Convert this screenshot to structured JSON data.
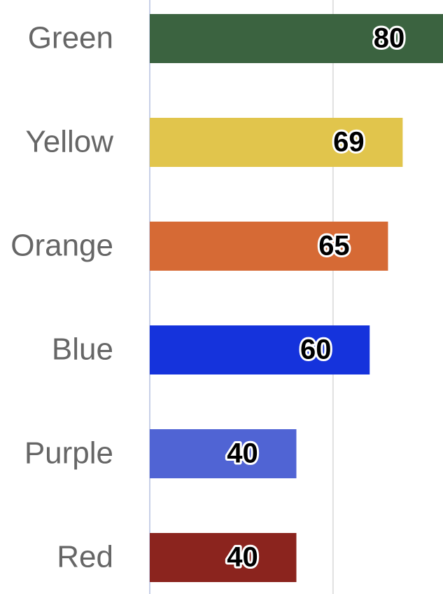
{
  "chart_data": {
    "type": "bar",
    "orientation": "horizontal",
    "categories": [
      "Green",
      "Yellow",
      "Orange",
      "Blue",
      "Purple",
      "Red"
    ],
    "values": [
      80,
      69,
      65,
      60,
      40,
      40
    ],
    "colors": [
      "#3b6340",
      "#e1c54c",
      "#d66a35",
      "#1533dc",
      "#5064d4",
      "#8b241e"
    ],
    "xlim": [
      0,
      80
    ],
    "xticks": [
      50
    ],
    "grid": true
  }
}
